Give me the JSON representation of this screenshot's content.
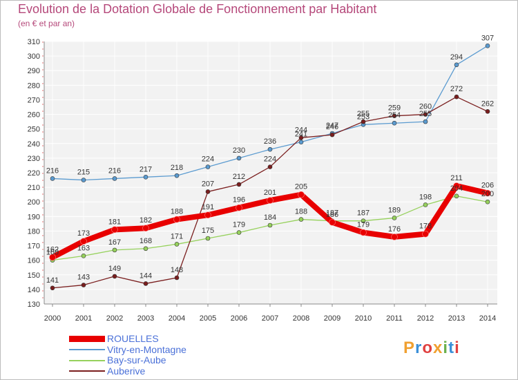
{
  "title": "Evolution de la Dotation Globale de Fonctionnement par Habitant",
  "subtitle": "(en € et par an)",
  "logo": {
    "text": "Proxiti",
    "colors": [
      "#f0a030",
      "#3a8fd8",
      "#e04040",
      "#f0a030",
      "#6ab04c",
      "#3a8fd8",
      "#e04040"
    ]
  },
  "chart_data": {
    "type": "line",
    "title": "Evolution de la Dotation Globale de Fonctionnement par Habitant",
    "subtitle": "(en € et par an)",
    "xlabel": "",
    "ylabel": "",
    "ylim": [
      130,
      310
    ],
    "ytick_step": 10,
    "grid": true,
    "legend_position": "bottom-left",
    "x": [
      "2000",
      "2001",
      "2002",
      "2003",
      "2004",
      "2005",
      "2006",
      "2007",
      "2008",
      "2009",
      "2010",
      "2011",
      "2012",
      "2013",
      "2014"
    ],
    "series": [
      {
        "name": "ROUELLES",
        "color": "#e80000",
        "values": [
          162,
          173,
          181,
          182,
          188,
          191,
          196,
          201,
          205,
          186,
          179,
          176,
          178,
          211,
          206
        ]
      },
      {
        "name": "Vitry-en-Montagne",
        "color": "#5b9bd0",
        "values": [
          216,
          215,
          216,
          217,
          218,
          224,
          230,
          236,
          241,
          247,
          253,
          254,
          255,
          294,
          307
        ]
      },
      {
        "name": "Bay-sur-Aube",
        "color": "#96d15c",
        "values": [
          160,
          163,
          167,
          168,
          171,
          175,
          179,
          184,
          188,
          187,
          187,
          189,
          198,
          204,
          200
        ]
      },
      {
        "name": "Auberive",
        "color": "#7a1e1e",
        "values": [
          141,
          143,
          149,
          144,
          148,
          207,
          212,
          224,
          244,
          246,
          255,
          259,
          260,
          272,
          262
        ]
      }
    ]
  }
}
